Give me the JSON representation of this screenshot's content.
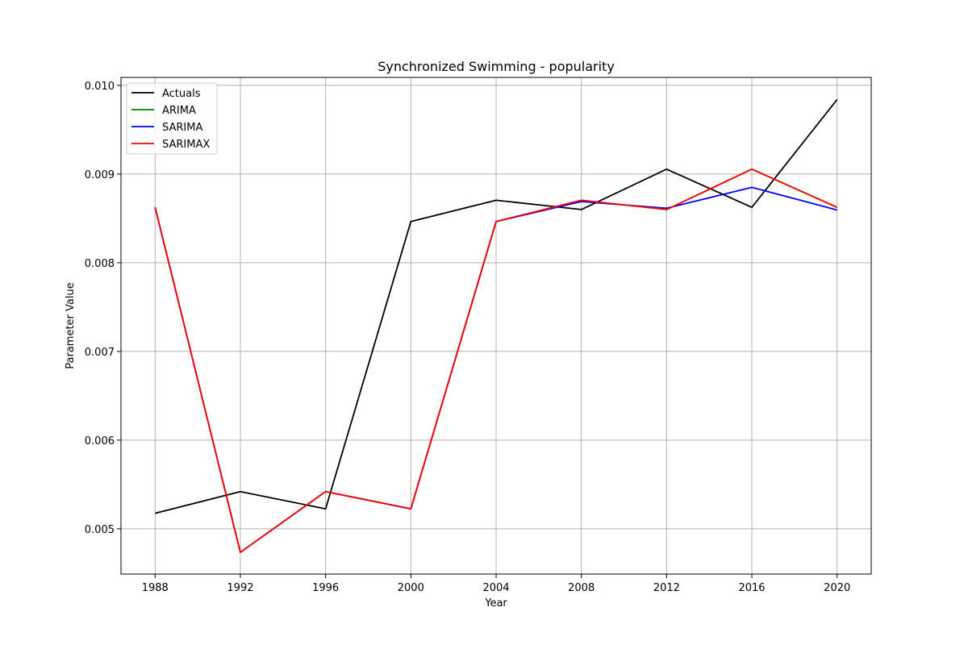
{
  "chart_data": {
    "type": "line",
    "title": "Synchronized Swimming - popularity",
    "xlabel": "Year",
    "ylabel": "Parameter Value",
    "x": [
      1988,
      1992,
      1996,
      2000,
      2004,
      2008,
      2012,
      2016,
      2020
    ],
    "x_ticks": [
      "1988",
      "1992",
      "1996",
      "2000",
      "2004",
      "2008",
      "2012",
      "2016",
      "2020"
    ],
    "y_ticks": [
      "0.005",
      "0.006",
      "0.007",
      "0.008",
      "0.009",
      "0.010"
    ],
    "xlim": [
      1986.4,
      2021.6
    ],
    "ylim": [
      0.00449,
      0.01009
    ],
    "grid": true,
    "legend_position": "top-left",
    "series": [
      {
        "name": "Actuals",
        "color": "#000000",
        "values": [
          0.005175,
          0.00542,
          0.005225,
          0.008465,
          0.008705,
          0.0086,
          0.009055,
          0.008625,
          0.00984
        ]
      },
      {
        "name": "ARIMA",
        "color": "#008000",
        "values": [
          0.008625,
          0.004735,
          0.00542,
          0.005225,
          0.008465,
          0.008705,
          0.0086,
          0.009055,
          0.008625
        ]
      },
      {
        "name": "SARIMA",
        "color": "#0000ff",
        "values": [
          0.008625,
          0.004735,
          0.00542,
          0.005225,
          0.008465,
          0.00869,
          0.008615,
          0.00885,
          0.008595
        ]
      },
      {
        "name": "SARIMAX",
        "color": "#ff0000",
        "values": [
          0.008625,
          0.004735,
          0.00542,
          0.005225,
          0.008465,
          0.008705,
          0.0086,
          0.009055,
          0.008625
        ]
      }
    ]
  }
}
